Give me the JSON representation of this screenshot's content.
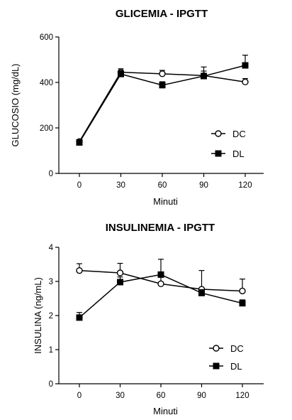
{
  "chart_data": [
    {
      "type": "line",
      "title": "GLICEMIA - IPGTT",
      "xlabel": "Minuti",
      "ylabel": "GLUCOSIO (mg/dL)",
      "x": [
        0,
        30,
        60,
        90,
        120
      ],
      "xticks": [
        "0",
        "30",
        "60",
        "90",
        "120"
      ],
      "ylim": [
        0,
        600
      ],
      "yticks": [
        "0",
        "200",
        "400",
        "600"
      ],
      "grid": false,
      "legend_position": "right",
      "series": [
        {
          "name": "DC",
          "marker": "open-circle",
          "values": [
            140,
            445,
            438,
            430,
            402
          ],
          "errors": [
            0,
            15,
            15,
            20,
            15
          ]
        },
        {
          "name": "DL",
          "marker": "filled-square",
          "values": [
            136,
            437,
            388,
            428,
            475
          ],
          "errors": [
            0,
            15,
            15,
            40,
            45
          ]
        }
      ]
    },
    {
      "type": "line",
      "title": "INSULINEMIA - IPGTT",
      "xlabel": "Minuti",
      "ylabel": "INSULINA (ng/mL)",
      "x": [
        0,
        30,
        60,
        90,
        120
      ],
      "xticks": [
        "0",
        "30",
        "60",
        "90",
        "120"
      ],
      "ylim": [
        0,
        4
      ],
      "yticks": [
        "0",
        "1",
        "2",
        "3",
        "4"
      ],
      "grid": false,
      "legend_position": "right",
      "series": [
        {
          "name": "DC",
          "marker": "open-circle",
          "values": [
            3.32,
            3.25,
            2.93,
            2.77,
            2.72
          ],
          "errors": [
            0.2,
            0.28,
            0.25,
            0.55,
            0.35
          ]
        },
        {
          "name": "DL",
          "marker": "filled-square",
          "values": [
            1.94,
            2.98,
            3.2,
            2.66,
            2.36
          ],
          "errors": [
            0.15,
            0.15,
            0.45,
            0.1,
            0.1
          ]
        }
      ]
    }
  ]
}
